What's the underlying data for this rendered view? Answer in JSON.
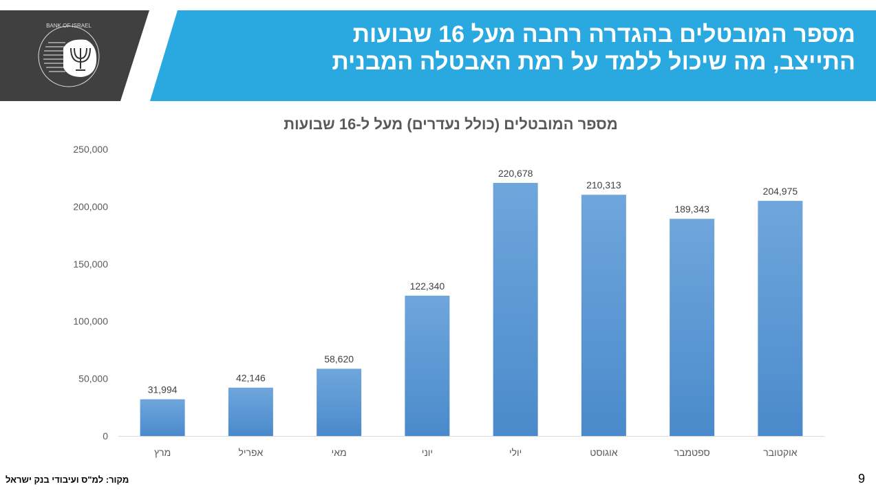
{
  "header": {
    "title_line1": "מספר המובטלים בהגדרה רחבה מעל 16 שבועות",
    "title_line2": "התייצב, מה שיכול ללמד על רמת האבטלה המבנית",
    "logo_text": "BANK OF ISRAEL בנק ישראל",
    "colors": {
      "banner": "#29a9e0",
      "logo_bg": "#404040"
    }
  },
  "chart_data": {
    "type": "bar",
    "title": "מספר המובטלים (כולל נעדרים) מעל ל-16 שבועות",
    "categories": [
      "מרץ",
      "אפריל",
      "מאי",
      "יוני",
      "יולי",
      "אוגוסט",
      "ספטמבר",
      "אוקטובר"
    ],
    "values": [
      31994,
      42146,
      58620,
      122340,
      220678,
      210313,
      189343,
      204975
    ],
    "data_labels": [
      "31,994",
      "42,146",
      "58,620",
      "122,340",
      "220,678",
      "210,313",
      "189,343",
      "204,975"
    ],
    "y_ticks": [
      "0",
      "50,000",
      "100,000",
      "150,000",
      "200,000",
      "250,000"
    ],
    "ylim": [
      0,
      250000
    ],
    "grid": false,
    "bar_color": "#5b9bd5"
  },
  "footer": {
    "source": "מקור: למ\"ס ועיבודי בנק ישראל",
    "page_number": "9"
  }
}
